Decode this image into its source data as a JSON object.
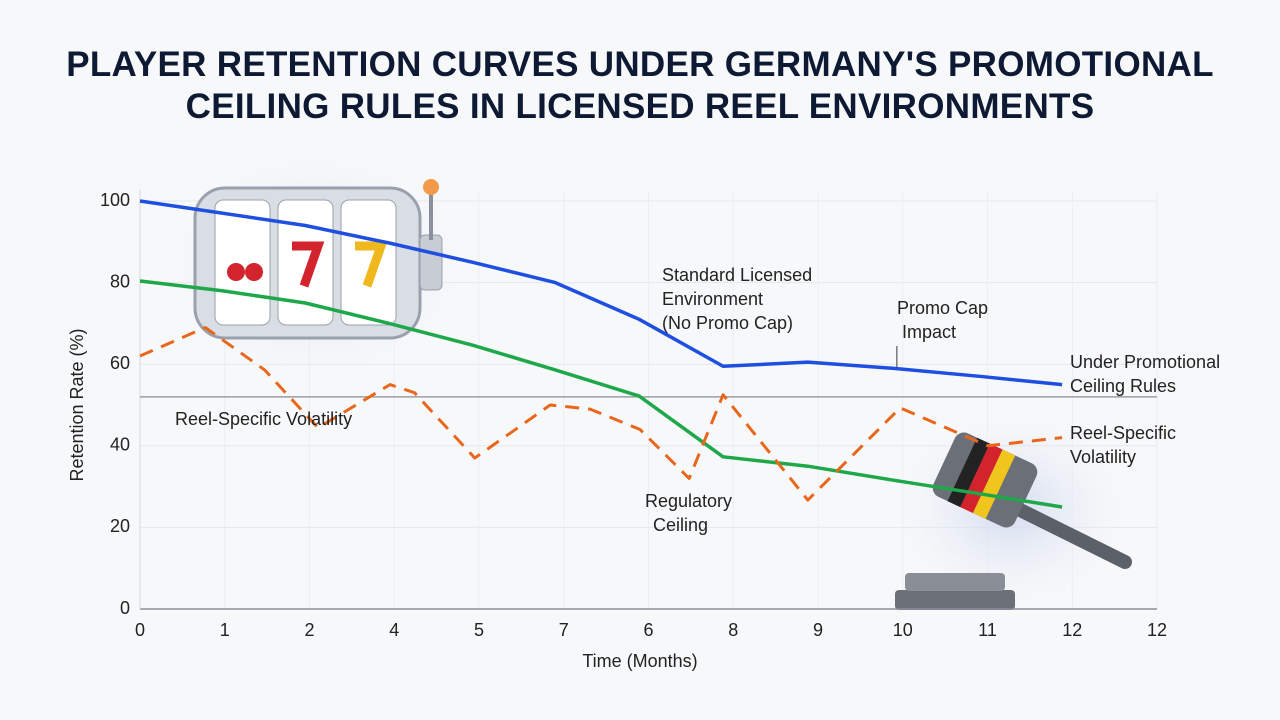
{
  "chart_data": {
    "type": "line",
    "title": "PLAYER RETENTION CURVES UNDER GERMANY'S PROMOTIONAL CEILING RULES IN LICENSED REEL ENVIRONMENTS",
    "x_label": "Time (Months)",
    "y_label": "Retention Rate (%)",
    "xlim": [
      0,
      12
    ],
    "ylim": [
      0,
      100
    ],
    "xticks": [
      0,
      1,
      2,
      {
        "value": 3,
        "label": "4"
      },
      {
        "value": 4,
        "label": "5"
      },
      {
        "value": 5,
        "label": "7"
      },
      {
        "value": 6,
        "label": "6"
      },
      {
        "value": 7,
        "label": "8"
      },
      {
        "value": 8,
        "label": "9"
      },
      {
        "value": 9,
        "label": "10"
      },
      {
        "value": 10,
        "label": "11"
      },
      {
        "value": 11,
        "label": "12"
      },
      12
    ],
    "yticks": [
      0,
      20,
      40,
      60,
      80,
      100
    ],
    "grid": true,
    "series": [
      {
        "color": "#1f4fe0",
        "dashed": false,
        "x": [
          0,
          1.95,
          2.94,
          3.92,
          4.9,
          5.89,
          6.88,
          7.88,
          8.88,
          9.92,
          10.88
        ],
        "values": [
          100,
          94,
          89.7,
          85,
          80,
          71,
          59.5,
          60.5,
          59,
          57,
          55
        ]
      },
      {
        "color": "#1fa84a",
        "dashed": false,
        "x": [
          0,
          0.97,
          1.95,
          2.94,
          3.92,
          4.9,
          5.89,
          6.88,
          7.88,
          8.88,
          9.92,
          10.88
        ],
        "values": [
          80.4,
          78,
          75,
          70,
          64.7,
          58.6,
          52.2,
          37.3,
          35,
          31.6,
          28.2,
          25
        ]
      },
      {
        "color": "#e8671c",
        "dashed": true,
        "x": [
          0,
          0.77,
          1.47,
          2.1,
          2.95,
          3.24,
          3.95,
          4.84,
          5.31,
          5.9,
          6.48,
          6.88,
          7.88,
          8.97,
          10,
          10.88
        ],
        "values": [
          62,
          69,
          58.6,
          44.4,
          55,
          53,
          37,
          50,
          49,
          44,
          32,
          52.5,
          26.7,
          49.3,
          40,
          42
        ]
      }
    ],
    "reference_line": 52,
    "marker_x": 8.93,
    "annotations": [
      [
        "Reel-Specific Volatility"
      ],
      [
        "Standard Licensed",
        "Environment",
        "(No Promo Cap)"
      ],
      [
        "Promo Cap",
        "Impact"
      ],
      [
        "Under Promotional",
        "Ceiling Rules"
      ],
      [
        "Reel-Specific",
        "Volatility"
      ],
      [
        "Regulatory",
        "Ceiling"
      ]
    ]
  }
}
